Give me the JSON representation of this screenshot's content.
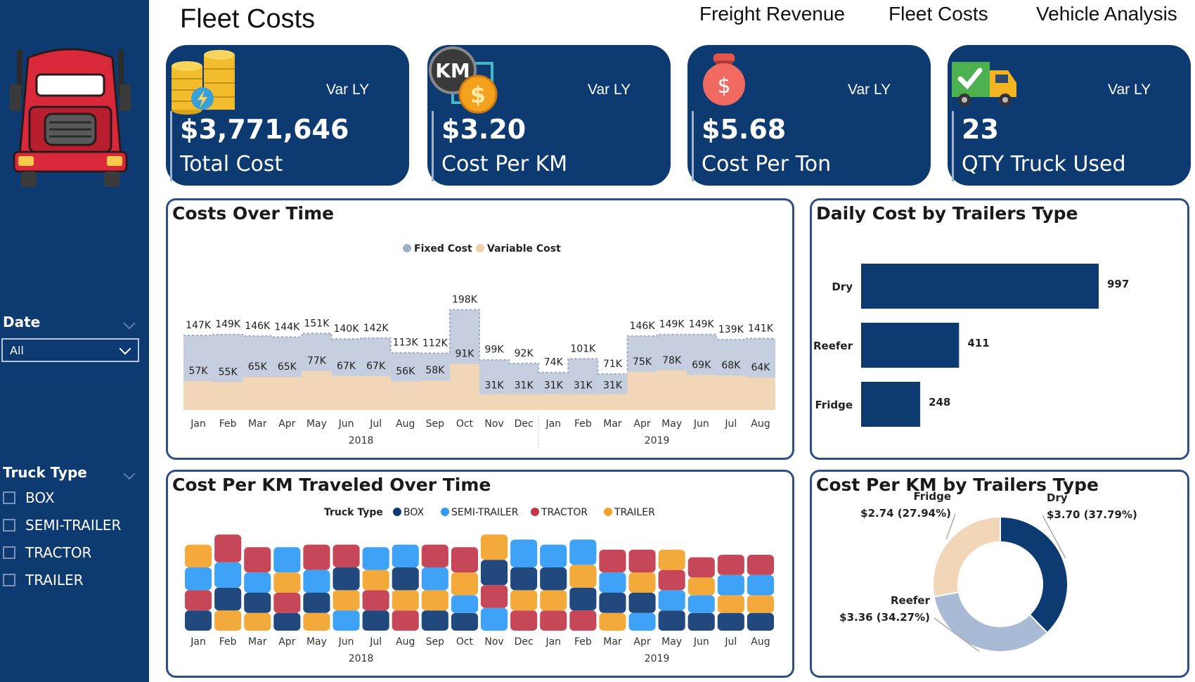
{
  "page": {
    "title": "Fleet Costs"
  },
  "nav": {
    "items": [
      "Freight Revenue",
      "Fleet Costs",
      "Vehicle Analysis"
    ]
  },
  "filters": {
    "date": {
      "label": "Date",
      "value": "All"
    },
    "truck_type": {
      "label": "Truck Type",
      "options": [
        "BOX",
        "SEMI-TRAILER",
        "TRACTOR",
        "TRAILER"
      ]
    }
  },
  "kpis": [
    {
      "value": "$3,771,646",
      "label": "Total Cost",
      "var": "Var LY",
      "icon": "coins-icon"
    },
    {
      "value": "$3.20",
      "label": "Cost Per KM",
      "var": "Var LY",
      "icon": "km-coin-icon"
    },
    {
      "value": "$5.68",
      "label": "Cost Per Ton",
      "var": "Var LY",
      "icon": "money-bag-icon"
    },
    {
      "value": "23",
      "label": "QTY Truck Used",
      "var": "Var LY",
      "icon": "truck-check-icon"
    }
  ],
  "colors": {
    "navy": "#0e3a72",
    "fixed": "#c4cede",
    "variable": "#f1d6b8",
    "box": "#0e3a72",
    "semi": "#2e9bf5",
    "tractor": "#c0374a",
    "trailer": "#f3a32a"
  },
  "chart_data": [
    {
      "type": "area",
      "title": "Costs Over Time",
      "legend": [
        "Fixed Cost",
        "Variable Cost"
      ],
      "categories": [
        "Jan",
        "Feb",
        "Mar",
        "Apr",
        "May",
        "Jun",
        "Jul",
        "Aug",
        "Sep",
        "Oct",
        "Nov",
        "Dec",
        "Jan",
        "Feb",
        "Mar",
        "Apr",
        "May",
        "Jun",
        "Jul",
        "Aug"
      ],
      "years": [
        {
          "label": "2018",
          "months": 12
        },
        {
          "label": "2019",
          "months": 8
        }
      ],
      "series": [
        {
          "name": "Fixed Cost",
          "values": [
            147,
            149,
            146,
            144,
            151,
            140,
            142,
            113,
            112,
            198,
            99,
            92,
            74,
            101,
            71,
            146,
            149,
            149,
            139,
            141
          ],
          "labels": [
            "147K",
            "149K",
            "146K",
            "144K",
            "151K",
            "140K",
            "142K",
            "113K",
            "112K",
            "198K",
            "99K",
            "92K",
            "74K",
            "101K",
            "71K",
            "146K",
            "149K",
            "149K",
            "139K",
            "141K"
          ]
        },
        {
          "name": "Variable Cost",
          "values": [
            57,
            55,
            65,
            65,
            77,
            67,
            67,
            56,
            58,
            91,
            31,
            31,
            31,
            31,
            31,
            75,
            78,
            69,
            68,
            64
          ],
          "labels": [
            "57K",
            "55K",
            "65K",
            "65K",
            "77K",
            "67K",
            "67K",
            "56K",
            "58K",
            "91K",
            "31K",
            "31K",
            "31K",
            "31K",
            "31K",
            "75K",
            "78K",
            "69K",
            "68K",
            "64K"
          ]
        }
      ]
    },
    {
      "type": "bar",
      "title": "Daily Cost by Trailers Type",
      "categories": [
        "Dry",
        "Reefer",
        "Fridge"
      ],
      "values": [
        997,
        411,
        248
      ]
    },
    {
      "type": "area",
      "title": "Cost Per KM Traveled Over Time",
      "legend_title": "Truck Type",
      "legend": [
        "BOX",
        "SEMI-TRAILER",
        "TRACTOR",
        "TRAILER"
      ],
      "categories": [
        "Jan",
        "Feb",
        "Mar",
        "Apr",
        "May",
        "Jun",
        "Jul",
        "Aug",
        "Sep",
        "Oct",
        "Nov",
        "Dec",
        "Jan",
        "Feb",
        "Mar",
        "Apr",
        "May",
        "Jun",
        "Jul",
        "Aug"
      ],
      "years": [
        {
          "label": "2018",
          "months": 12
        },
        {
          "label": "2019",
          "months": 8
        }
      ],
      "series": [
        {
          "name": "BOX",
          "values": [
            0.8,
            0.9,
            0.8,
            0.7,
            0.8,
            0.9,
            0.8,
            0.9,
            0.8,
            0.7,
            1.0,
            0.9,
            0.9,
            0.9,
            0.8,
            0.8,
            0.8,
            0.7,
            0.7,
            0.7
          ]
        },
        {
          "name": "SEMI-TRAILER",
          "values": [
            0.9,
            1.0,
            0.8,
            1.0,
            0.9,
            0.8,
            0.9,
            0.9,
            0.9,
            0.7,
            0.9,
            1.1,
            0.9,
            1.0,
            0.8,
            0.7,
            0.8,
            0.7,
            0.8,
            0.8
          ]
        },
        {
          "name": "TRACTOR",
          "values": [
            0.8,
            1.1,
            1.0,
            0.8,
            1.0,
            0.9,
            0.8,
            0.8,
            0.9,
            1.0,
            0.9,
            0.8,
            0.8,
            0.8,
            0.9,
            0.9,
            0.8,
            0.8,
            0.8,
            0.8
          ]
        },
        {
          "name": "TRAILER",
          "values": [
            0.9,
            0.8,
            0.7,
            0.8,
            0.7,
            0.8,
            0.8,
            0.8,
            0.8,
            0.9,
            1.0,
            0.8,
            0.8,
            0.9,
            0.7,
            0.8,
            0.8,
            0.7,
            0.7,
            0.7
          ]
        }
      ]
    },
    {
      "type": "pie",
      "title": "Cost Per KM by Trailers Type",
      "categories": [
        "Dry",
        "Reefer",
        "Fridge"
      ],
      "values": [
        3.7,
        3.36,
        2.74
      ],
      "labels": [
        "$3.70 (37.79%)",
        "$3.36 (34.27%)",
        "$2.74 (27.94%)"
      ]
    }
  ]
}
